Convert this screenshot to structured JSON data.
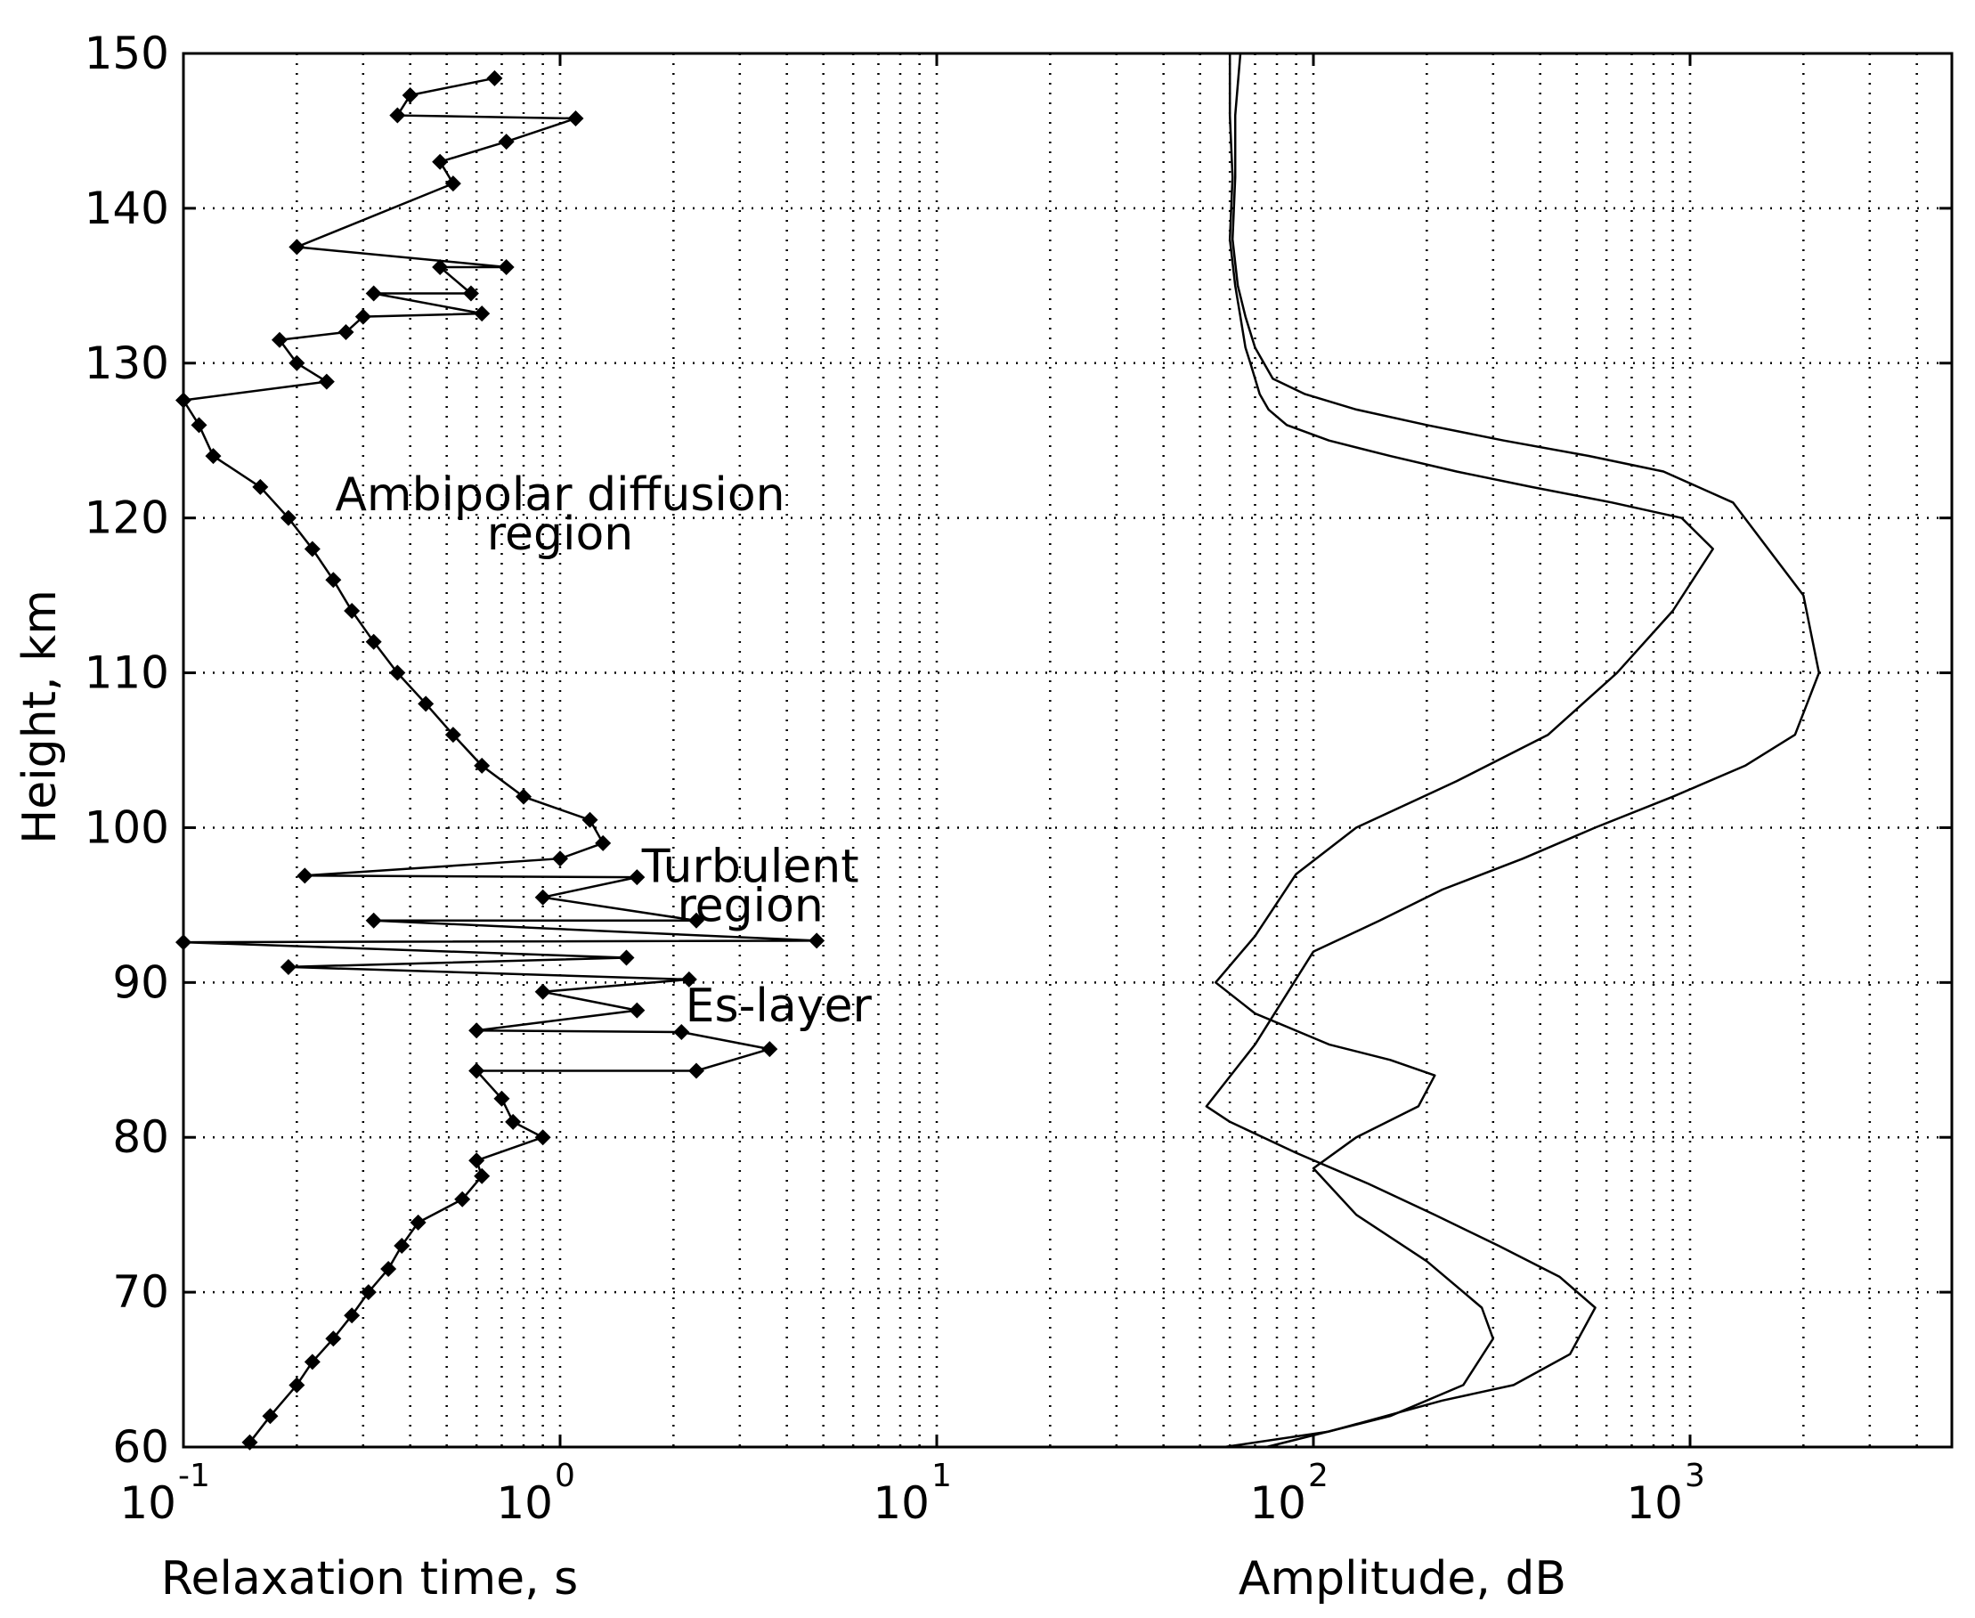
{
  "chart_data": {
    "type": "scatter",
    "ylabel": "Height, km",
    "xlabel_left": "Relaxation time, s",
    "xlabel_right": "Amplitude, dB",
    "x_scale": "log",
    "xlim": [
      0.1,
      5000
    ],
    "ylim": [
      60,
      150
    ],
    "grid": true,
    "y_ticks": [
      "60",
      "70",
      "80",
      "90",
      "100",
      "110",
      "120",
      "130",
      "140",
      "150"
    ],
    "y_tick_values": [
      60,
      70,
      80,
      90,
      100,
      110,
      120,
      130,
      140,
      150
    ],
    "x_ticks": [
      {
        "base": "10",
        "exp": "-1",
        "value": 0.1
      },
      {
        "base": "10",
        "exp": "0",
        "value": 1
      },
      {
        "base": "10",
        "exp": "1",
        "value": 10
      },
      {
        "base": "10",
        "exp": "2",
        "value": 100
      },
      {
        "base": "10",
        "exp": "3",
        "value": 1000
      }
    ],
    "annotations": [
      {
        "lines": [
          "Ambipolar diffusion",
          "region"
        ],
        "x": 1.0,
        "y": 120.5
      },
      {
        "lines": [
          "Turbulent",
          "region"
        ],
        "x": 3.2,
        "y": 96.5
      },
      {
        "lines": [
          "Es-layer"
        ],
        "x": 3.8,
        "y": 87.5
      }
    ],
    "series": [
      {
        "values": [
          {
            "x": 0.15,
            "y": 60.3
          },
          {
            "x": 0.17,
            "y": 62
          },
          {
            "x": 0.2,
            "y": 64
          },
          {
            "x": 0.22,
            "y": 65.5
          },
          {
            "x": 0.25,
            "y": 67
          },
          {
            "x": 0.28,
            "y": 68.5
          },
          {
            "x": 0.31,
            "y": 70
          },
          {
            "x": 0.35,
            "y": 71.5
          },
          {
            "x": 0.38,
            "y": 73
          },
          {
            "x": 0.42,
            "y": 74.5
          },
          {
            "x": 0.55,
            "y": 76
          },
          {
            "x": 0.62,
            "y": 77.5
          },
          {
            "x": 0.6,
            "y": 78.5
          },
          {
            "x": 0.9,
            "y": 80
          },
          {
            "x": 0.75,
            "y": 81
          },
          {
            "x": 0.7,
            "y": 82.5
          },
          {
            "x": 0.6,
            "y": 84.3
          },
          {
            "x": 2.3,
            "y": 84.3
          },
          {
            "x": 3.6,
            "y": 85.7
          },
          {
            "x": 2.1,
            "y": 86.8
          },
          {
            "x": 0.6,
            "y": 86.9
          },
          {
            "x": 1.6,
            "y": 88.2
          },
          {
            "x": 0.9,
            "y": 89.4
          },
          {
            "x": 2.2,
            "y": 90.2
          },
          {
            "x": 0.19,
            "y": 91
          },
          {
            "x": 1.5,
            "y": 91.6
          },
          {
            "x": 0.1,
            "y": 92.6
          },
          {
            "x": 4.8,
            "y": 92.7
          },
          {
            "x": 0.32,
            "y": 94
          },
          {
            "x": 2.3,
            "y": 94
          },
          {
            "x": 0.9,
            "y": 95.5
          },
          {
            "x": 1.6,
            "y": 96.8
          },
          {
            "x": 0.21,
            "y": 96.9
          },
          {
            "x": 1.0,
            "y": 98
          },
          {
            "x": 1.3,
            "y": 99
          },
          {
            "x": 1.2,
            "y": 100.5
          },
          {
            "x": 0.8,
            "y": 102
          },
          {
            "x": 0.62,
            "y": 104
          },
          {
            "x": 0.52,
            "y": 106
          },
          {
            "x": 0.44,
            "y": 108
          },
          {
            "x": 0.37,
            "y": 110
          },
          {
            "x": 0.32,
            "y": 112
          },
          {
            "x": 0.28,
            "y": 114
          },
          {
            "x": 0.25,
            "y": 116
          },
          {
            "x": 0.22,
            "y": 118
          },
          {
            "x": 0.19,
            "y": 120
          },
          {
            "x": 0.16,
            "y": 122
          },
          {
            "x": 0.12,
            "y": 124
          },
          {
            "x": 0.11,
            "y": 126
          },
          {
            "x": 0.1,
            "y": 127.6
          },
          {
            "x": 0.24,
            "y": 128.8
          },
          {
            "x": 0.2,
            "y": 130
          },
          {
            "x": 0.18,
            "y": 131.5
          },
          {
            "x": 0.27,
            "y": 132
          },
          {
            "x": 0.3,
            "y": 133
          },
          {
            "x": 0.62,
            "y": 133.2
          },
          {
            "x": 0.32,
            "y": 134.5
          },
          {
            "x": 0.58,
            "y": 134.5
          },
          {
            "x": 0.48,
            "y": 136.2
          },
          {
            "x": 0.72,
            "y": 136.2
          },
          {
            "x": 0.2,
            "y": 137.5
          },
          {
            "x": 0.52,
            "y": 141.6
          },
          {
            "x": 0.48,
            "y": 143
          },
          {
            "x": 0.72,
            "y": 144.3
          },
          {
            "x": 1.1,
            "y": 145.8
          },
          {
            "x": 0.37,
            "y": 146
          },
          {
            "x": 0.4,
            "y": 147.3
          },
          {
            "x": 0.67,
            "y": 148.4
          }
        ]
      },
      {
        "x": [
          60,
          60,
          61,
          60,
          62,
          64,
          66,
          68,
          70,
          72,
          76,
          85,
          110,
          160,
          240,
          380,
          620,
          950,
          1150,
          900,
          640,
          420,
          240,
          130,
          90,
          70,
          55,
          70,
          110,
          160,
          210,
          190,
          130,
          100,
          130,
          200,
          280,
          300,
          250,
          160,
          75
        ],
        "y": [
          150,
          146,
          142,
          138,
          135,
          133,
          131,
          130,
          129,
          128,
          127,
          126,
          125,
          124,
          123,
          122,
          121,
          120,
          118,
          114,
          110,
          106,
          103,
          100,
          97,
          93,
          90,
          88,
          86,
          85,
          84,
          82,
          80,
          78,
          75,
          72,
          69,
          67,
          64,
          62,
          60
        ]
      },
      {
        "x": [
          64,
          62,
          62,
          61,
          63,
          66,
          70,
          78,
          95,
          130,
          200,
          320,
          540,
          850,
          1300,
          2000,
          2200,
          1900,
          1400,
          900,
          560,
          360,
          220,
          150,
          100,
          70,
          52,
          60,
          90,
          140,
          210,
          310,
          450,
          560,
          480,
          340,
          220,
          110,
          58
        ],
        "y": [
          150,
          146,
          142,
          138,
          135,
          133,
          131,
          129,
          128,
          127,
          126,
          125,
          124,
          123,
          121,
          115,
          110,
          106,
          104,
          102,
          100,
          98,
          96,
          94,
          92,
          86,
          82,
          81,
          79,
          77,
          75,
          73,
          71,
          69,
          66,
          64,
          63,
          61,
          60
        ]
      }
    ]
  }
}
